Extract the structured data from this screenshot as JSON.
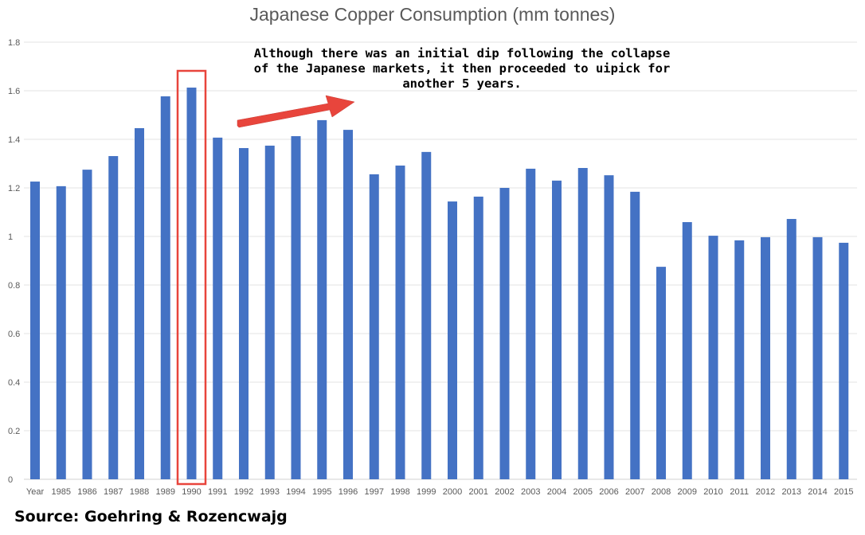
{
  "chart_data": {
    "type": "bar",
    "title": "Japanese Copper Consumption (mm tonnes)",
    "xlabel": "",
    "ylabel": "",
    "ylim": [
      0,
      1.8
    ],
    "yticks": [
      "0",
      "0.2",
      "0.4",
      "0.6",
      "0.8",
      "1",
      "1.2",
      "1.4",
      "1.6",
      "1.8"
    ],
    "grid": true,
    "categories": [
      "Year",
      "1985",
      "1986",
      "1987",
      "1988",
      "1989",
      "1990",
      "1991",
      "1992",
      "1993",
      "1994",
      "1995",
      "1996",
      "1997",
      "1998",
      "1999",
      "2000",
      "2001",
      "2002",
      "2003",
      "2004",
      "2005",
      "2006",
      "2007",
      "2008",
      "2009",
      "2010",
      "2011",
      "2012",
      "2013",
      "2014",
      "2015"
    ],
    "values": [
      1.226,
      1.207,
      1.275,
      1.331,
      1.446,
      1.577,
      1.613,
      1.407,
      1.364,
      1.374,
      1.413,
      1.479,
      1.439,
      1.256,
      1.292,
      1.348,
      1.144,
      1.164,
      1.2,
      1.279,
      1.23,
      1.282,
      1.252,
      1.184,
      0.875,
      1.059,
      1.003,
      0.984,
      0.997,
      1.072,
      0.997,
      0.974
    ],
    "bar_color": "#4472C4",
    "highlight_category": "1990",
    "highlight_color": "#E8453C",
    "annotation": "Although there was an initial dip following the collapse of the Japanese markets, it then proceeded to uipick for another 5 years."
  },
  "annotation_lines": [
    "Although there was an initial dip following the collapse",
    "of the Japanese markets, it then proceeded to uipick for",
    "another 5 years."
  ],
  "source": "Source: Goehring & Rozencwajg"
}
